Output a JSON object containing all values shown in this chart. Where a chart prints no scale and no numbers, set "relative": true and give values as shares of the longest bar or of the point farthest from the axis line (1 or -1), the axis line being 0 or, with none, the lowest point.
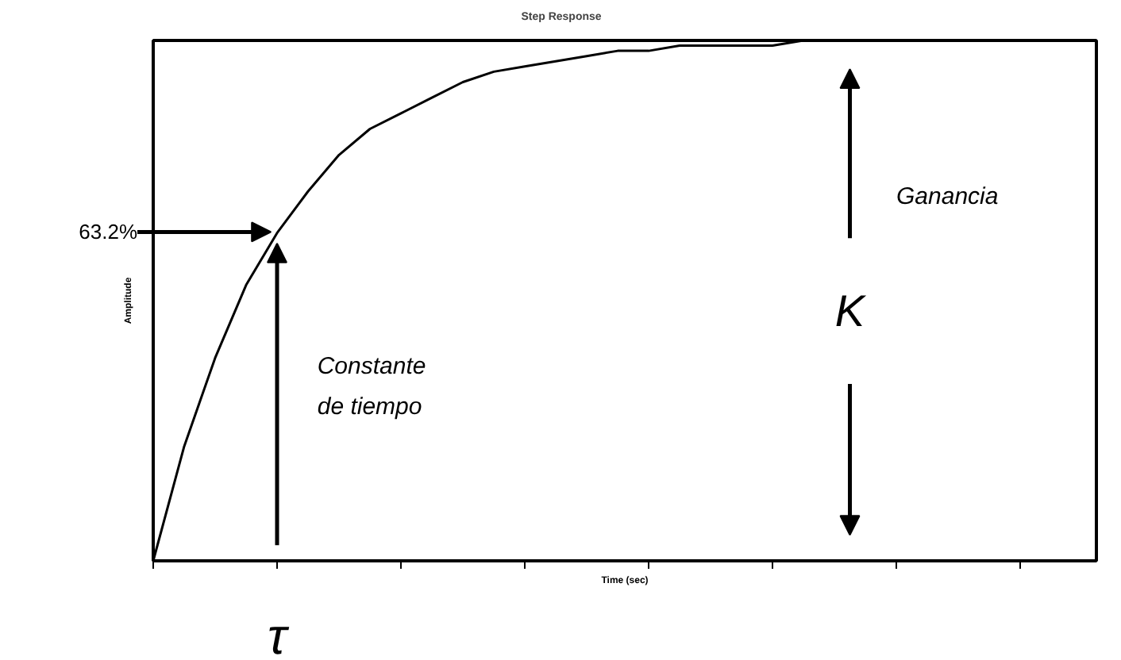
{
  "chart_data": {
    "type": "line",
    "relative": true,
    "title": "Step Response",
    "xlabel": "Time (sec)",
    "ylabel": "Amplitude",
    "grid": false,
    "marker": "none",
    "line_style": "solid",
    "categories": [
      null,
      null,
      null,
      null,
      null,
      null,
      null,
      null,
      null,
      null,
      null,
      null,
      null,
      null,
      null,
      null,
      null,
      null,
      null,
      null,
      null,
      null,
      null,
      null,
      null,
      null,
      null,
      null,
      null,
      null,
      null
    ],
    "series": [
      {
        "color": "#000000",
        "values": [
          0,
          0.22,
          0.39,
          0.53,
          0.63,
          0.71,
          0.78,
          0.83,
          0.86,
          0.89,
          0.92,
          0.94,
          0.95,
          0.96,
          0.97,
          0.98,
          0.98,
          0.99,
          0.99,
          0.99,
          0.99,
          1,
          1,
          1,
          1,
          null,
          null,
          null,
          null,
          null,
          null
        ]
      }
    ],
    "annotations": [
      "63.2%",
      "Constante\nde tiempo",
      "Ganancia",
      "K",
      "τ"
    ]
  }
}
